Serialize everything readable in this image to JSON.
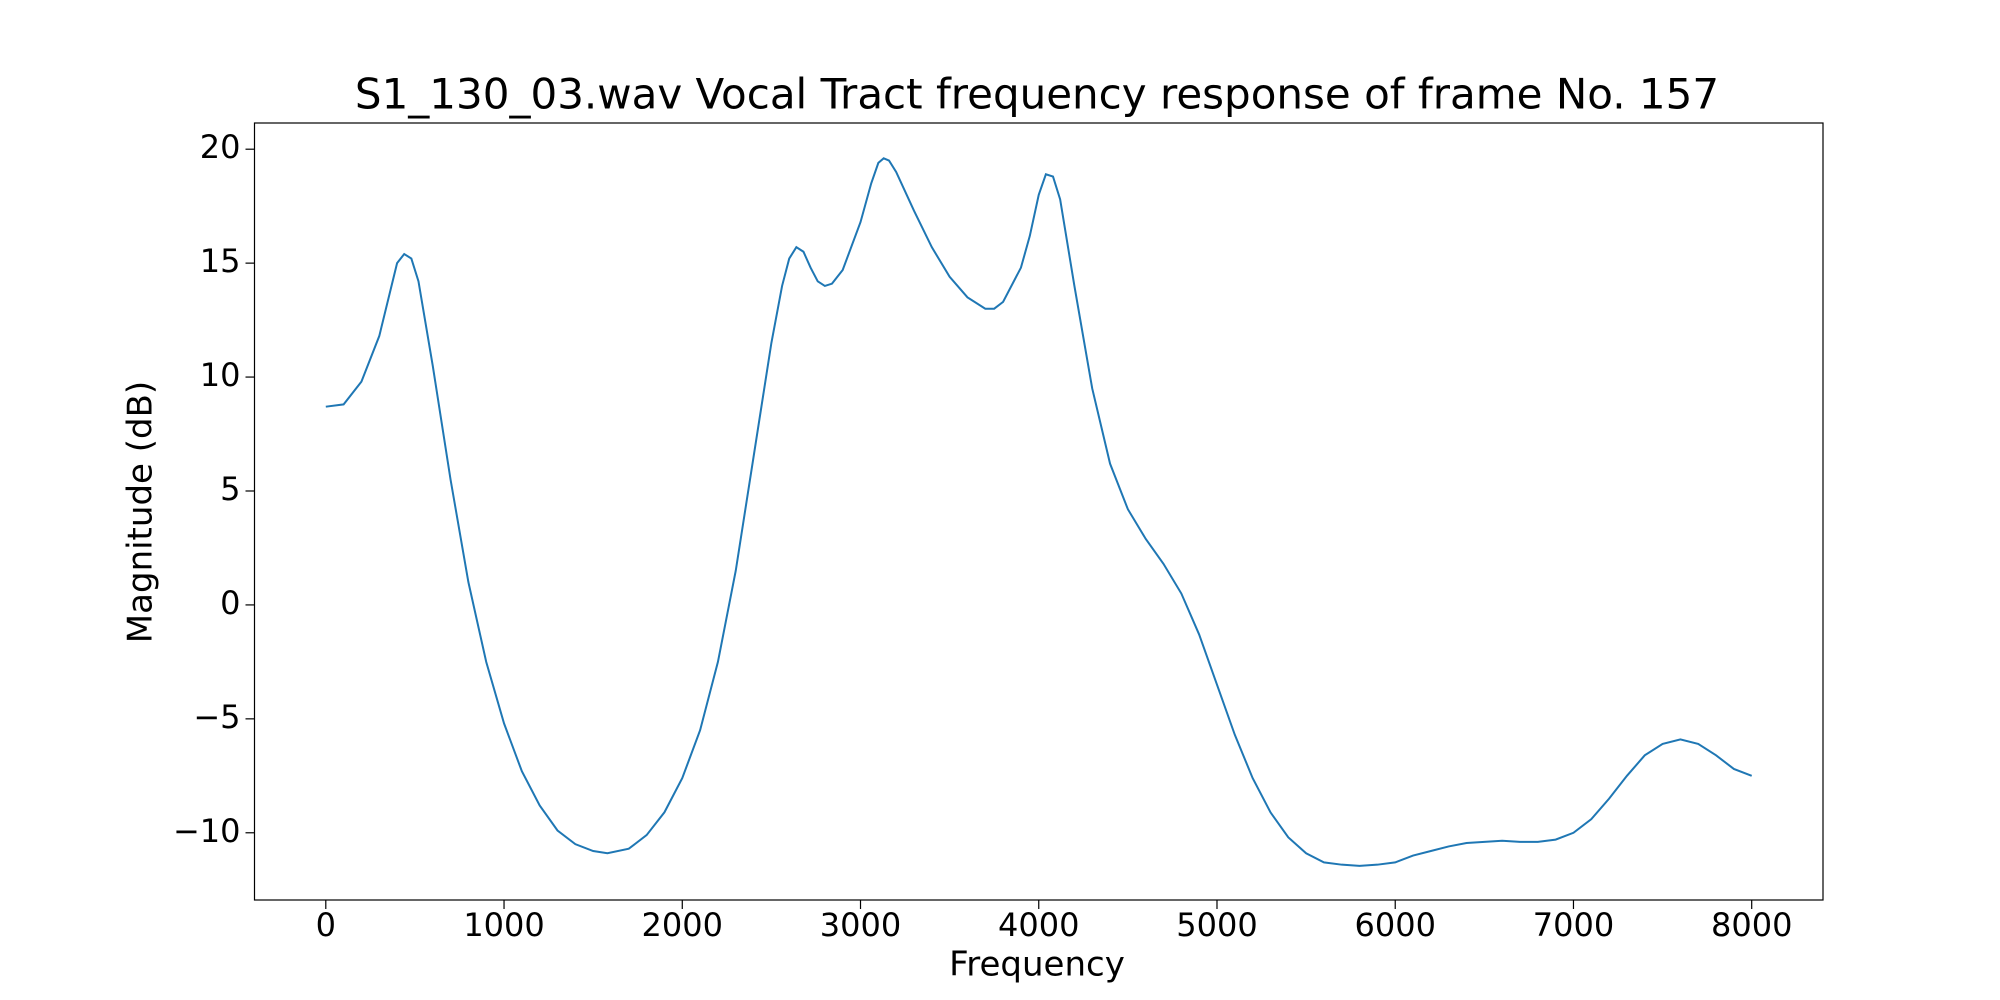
{
  "chart_data": {
    "type": "line",
    "title": "S1_130_03.wav Vocal Tract frequency response of frame No. 157",
    "xlabel": "Frequency",
    "ylabel": "Magnitude (dB)",
    "xlim": [
      -400,
      8400
    ],
    "ylim": [
      -12.95,
      21.15
    ],
    "xticks": [
      0,
      1000,
      2000,
      3000,
      4000,
      5000,
      6000,
      7000,
      8000
    ],
    "yticks": [
      {
        "value": -10,
        "label": "−10"
      },
      {
        "value": -5,
        "label": "−5"
      },
      0,
      5,
      10,
      15,
      20
    ],
    "grid": false,
    "series": [
      {
        "color": "#1f77b4",
        "x": [
          0,
          100,
          200,
          300,
          400,
          440,
          480,
          520,
          600,
          700,
          800,
          900,
          1000,
          1100,
          1200,
          1300,
          1400,
          1500,
          1580,
          1700,
          1800,
          1900,
          2000,
          2100,
          2200,
          2300,
          2400,
          2500,
          2560,
          2600,
          2640,
          2680,
          2720,
          2760,
          2800,
          2840,
          2900,
          3000,
          3060,
          3100,
          3130,
          3160,
          3200,
          3300,
          3400,
          3500,
          3600,
          3700,
          3750,
          3800,
          3900,
          3950,
          4000,
          4040,
          4080,
          4120,
          4200,
          4300,
          4400,
          4500,
          4600,
          4700,
          4800,
          4900,
          5000,
          5100,
          5200,
          5300,
          5400,
          5500,
          5600,
          5700,
          5800,
          5900,
          6000,
          6100,
          6200,
          6300,
          6400,
          6500,
          6600,
          6700,
          6800,
          6900,
          7000,
          7100,
          7200,
          7300,
          7400,
          7500,
          7600,
          7700,
          7800,
          7900,
          8000
        ],
        "values": [
          8.7,
          8.8,
          9.8,
          11.8,
          15.0,
          15.4,
          15.2,
          14.2,
          10.5,
          5.5,
          1.0,
          -2.5,
          -5.2,
          -7.3,
          -8.8,
          -9.9,
          -10.5,
          -10.8,
          -10.9,
          -10.7,
          -10.1,
          -9.1,
          -7.6,
          -5.5,
          -2.5,
          1.5,
          6.5,
          11.5,
          14.0,
          15.2,
          15.7,
          15.5,
          14.8,
          14.2,
          14.0,
          14.1,
          14.7,
          16.8,
          18.5,
          19.4,
          19.6,
          19.5,
          19.0,
          17.3,
          15.7,
          14.4,
          13.5,
          13.0,
          13.0,
          13.3,
          14.8,
          16.2,
          18.0,
          18.9,
          18.8,
          17.8,
          14.0,
          9.5,
          6.2,
          4.2,
          2.9,
          1.8,
          0.5,
          -1.3,
          -3.5,
          -5.7,
          -7.6,
          -9.1,
          -10.2,
          -10.9,
          -11.3,
          -11.4,
          -11.45,
          -11.4,
          -11.3,
          -11.0,
          -10.8,
          -10.6,
          -10.45,
          -10.4,
          -10.35,
          -10.4,
          -10.4,
          -10.3,
          -10.0,
          -9.4,
          -8.5,
          -7.5,
          -6.6,
          -6.1,
          -5.9,
          -6.1,
          -6.6,
          -7.2,
          -7.5
        ]
      }
    ]
  }
}
